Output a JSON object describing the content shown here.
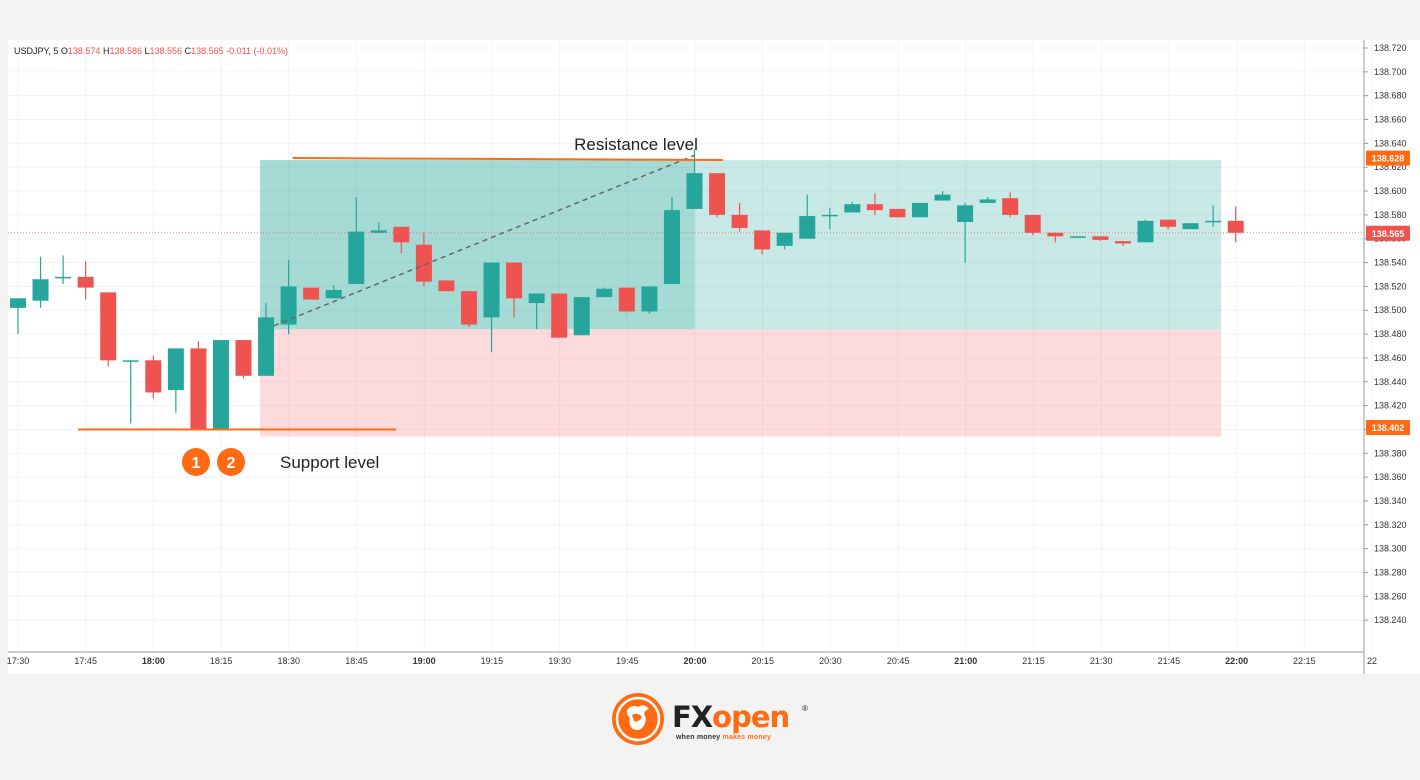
{
  "header": {
    "symbol": "USDJPY, 5",
    "o_label": "O",
    "o": "138.574",
    "h_label": "H",
    "h": "138.586",
    "l_label": "L",
    "l": "138.556",
    "c_label": "C",
    "c": "138.565",
    "change": "-0.011 (-0.01%)"
  },
  "annotations": {
    "resistance": "Resistance level",
    "support": "Support level",
    "marker1": "1",
    "marker2": "2"
  },
  "brand": {
    "name_a": "FX",
    "name_b": "open",
    "reg": "®",
    "tag_a": "when money ",
    "tag_b": "makes money"
  },
  "colors": {
    "up": "#26a69a",
    "down": "#ef5350",
    "accent": "#ff6a13",
    "profit_zone": "#26a69a",
    "loss_zone": "#f77c80"
  },
  "chart_data": {
    "type": "candlestick",
    "ylim": [
      138.22,
      138.72
    ],
    "x_tick_labels": [
      "17:30",
      "17:45",
      "18:00",
      "18:15",
      "18:30",
      "18:45",
      "19:00",
      "19:15",
      "19:30",
      "19:45",
      "20:00",
      "20:15",
      "20:30",
      "20:45",
      "21:00",
      "21:15",
      "21:30",
      "21:45",
      "22:00",
      "22:15",
      "22"
    ],
    "y_tick_values": [
      138.24,
      138.26,
      138.28,
      138.3,
      138.32,
      138.34,
      138.36,
      138.38,
      138.4,
      138.42,
      138.44,
      138.46,
      138.48,
      138.5,
      138.52,
      138.54,
      138.56,
      138.58,
      138.6,
      138.62,
      138.64,
      138.66,
      138.68,
      138.7,
      138.72
    ],
    "y_tick_labels": [
      "138.240",
      "138.260",
      "138.280",
      "138.300",
      "138.320",
      "138.340",
      "138.360",
      "138.380",
      "138.400",
      "138.420",
      "138.440",
      "138.460",
      "138.480",
      "138.500",
      "138.520",
      "138.540",
      "138.560",
      "138.580",
      "138.600",
      "138.620",
      "138.640",
      "138.660",
      "138.680",
      "138.700",
      "138.720"
    ],
    "price_labels": [
      {
        "value": 138.628,
        "text": "138.628"
      },
      {
        "value": 138.565,
        "text": "138.565"
      },
      {
        "value": 138.402,
        "text": "138.402"
      }
    ],
    "current_price": 138.565,
    "candles": [
      {
        "o": 138.502,
        "h": 138.51,
        "l": 138.48,
        "c": 138.51
      },
      {
        "o": 138.508,
        "h": 138.545,
        "l": 138.502,
        "c": 138.526
      },
      {
        "o": 138.528,
        "h": 138.546,
        "l": 138.522,
        "c": 138.528
      },
      {
        "o": 138.528,
        "h": 138.541,
        "l": 138.509,
        "c": 138.519
      },
      {
        "o": 138.515,
        "h": 138.515,
        "l": 138.453,
        "c": 138.458
      },
      {
        "o": 138.458,
        "h": 138.458,
        "l": 138.405,
        "c": 138.458
      },
      {
        "o": 138.458,
        "h": 138.462,
        "l": 138.426,
        "c": 138.431
      },
      {
        "o": 138.433,
        "h": 138.468,
        "l": 138.414,
        "c": 138.468
      },
      {
        "o": 138.468,
        "h": 138.474,
        "l": 138.4,
        "c": 138.4
      },
      {
        "o": 138.4,
        "h": 138.475,
        "l": 138.4,
        "c": 138.475
      },
      {
        "o": 138.475,
        "h": 138.475,
        "l": 138.443,
        "c": 138.445
      },
      {
        "o": 138.445,
        "h": 138.506,
        "l": 138.445,
        "c": 138.494
      },
      {
        "o": 138.488,
        "h": 138.542,
        "l": 138.48,
        "c": 138.52
      },
      {
        "o": 138.519,
        "h": 138.519,
        "l": 138.509,
        "c": 138.509
      },
      {
        "o": 138.51,
        "h": 138.521,
        "l": 138.51,
        "c": 138.517
      },
      {
        "o": 138.522,
        "h": 138.595,
        "l": 138.522,
        "c": 138.566
      },
      {
        "o": 138.565,
        "h": 138.574,
        "l": 138.565,
        "c": 138.567
      },
      {
        "o": 138.57,
        "h": 138.57,
        "l": 138.548,
        "c": 138.557
      },
      {
        "o": 138.555,
        "h": 138.565,
        "l": 138.52,
        "c": 138.524
      },
      {
        "o": 138.525,
        "h": 138.525,
        "l": 138.516,
        "c": 138.516
      },
      {
        "o": 138.516,
        "h": 138.516,
        "l": 138.486,
        "c": 138.488
      },
      {
        "o": 138.494,
        "h": 138.54,
        "l": 138.465,
        "c": 138.54
      },
      {
        "o": 138.54,
        "h": 138.54,
        "l": 138.494,
        "c": 138.51
      },
      {
        "o": 138.506,
        "h": 138.514,
        "l": 138.484,
        "c": 138.514
      },
      {
        "o": 138.514,
        "h": 138.514,
        "l": 138.477,
        "c": 138.477
      },
      {
        "o": 138.479,
        "h": 138.511,
        "l": 138.479,
        "c": 138.511
      },
      {
        "o": 138.511,
        "h": 138.519,
        "l": 138.511,
        "c": 138.518
      },
      {
        "o": 138.519,
        "h": 138.519,
        "l": 138.498,
        "c": 138.499
      },
      {
        "o": 138.499,
        "h": 138.52,
        "l": 138.497,
        "c": 138.52
      },
      {
        "o": 138.522,
        "h": 138.595,
        "l": 138.522,
        "c": 138.584
      },
      {
        "o": 138.585,
        "h": 138.635,
        "l": 138.585,
        "c": 138.615
      },
      {
        "o": 138.615,
        "h": 138.615,
        "l": 138.578,
        "c": 138.58
      },
      {
        "o": 138.58,
        "h": 138.59,
        "l": 138.566,
        "c": 138.569
      },
      {
        "o": 138.567,
        "h": 138.567,
        "l": 138.547,
        "c": 138.551
      },
      {
        "o": 138.554,
        "h": 138.565,
        "l": 138.551,
        "c": 138.565
      },
      {
        "o": 138.56,
        "h": 138.597,
        "l": 138.56,
        "c": 138.579
      },
      {
        "o": 138.58,
        "h": 138.586,
        "l": 138.568,
        "c": 138.58
      },
      {
        "o": 138.582,
        "h": 138.591,
        "l": 138.582,
        "c": 138.589
      },
      {
        "o": 138.589,
        "h": 138.598,
        "l": 138.58,
        "c": 138.584
      },
      {
        "o": 138.585,
        "h": 138.585,
        "l": 138.578,
        "c": 138.578
      },
      {
        "o": 138.578,
        "h": 138.59,
        "l": 138.578,
        "c": 138.59
      },
      {
        "o": 138.592,
        "h": 138.6,
        "l": 138.592,
        "c": 138.597
      },
      {
        "o": 138.574,
        "h": 138.59,
        "l": 138.54,
        "c": 138.588
      },
      {
        "o": 138.59,
        "h": 138.595,
        "l": 138.59,
        "c": 138.593
      },
      {
        "o": 138.594,
        "h": 138.599,
        "l": 138.578,
        "c": 138.58
      },
      {
        "o": 138.58,
        "h": 138.58,
        "l": 138.563,
        "c": 138.565
      },
      {
        "o": 138.565,
        "h": 138.565,
        "l": 138.557,
        "c": 138.562
      },
      {
        "o": 138.561,
        "h": 138.562,
        "l": 138.561,
        "c": 138.562
      },
      {
        "o": 138.562,
        "h": 138.562,
        "l": 138.558,
        "c": 138.559
      },
      {
        "o": 138.558,
        "h": 138.558,
        "l": 138.554,
        "c": 138.556
      },
      {
        "o": 138.557,
        "h": 138.576,
        "l": 138.557,
        "c": 138.575
      },
      {
        "o": 138.576,
        "h": 138.576,
        "l": 138.568,
        "c": 138.57
      },
      {
        "o": 138.568,
        "h": 138.573,
        "l": 138.568,
        "c": 138.573
      },
      {
        "o": 138.575,
        "h": 138.588,
        "l": 138.57,
        "c": 138.575
      },
      {
        "o": 138.575,
        "h": 138.587,
        "l": 138.557,
        "c": 138.565
      }
    ],
    "overlays": {
      "profit_zone": {
        "price_top": 138.626,
        "price_bottom": 138.484,
        "from_candle": 11,
        "to_candle": 53,
        "filled_to_candle": 30
      },
      "loss_zone": {
        "price_top": 138.484,
        "price_bottom": 138.394,
        "from_candle": 11,
        "to_candle": 53
      },
      "resistance_line": {
        "price": 138.626,
        "from_candle": 12,
        "to_candle": 31
      },
      "support_line": {
        "price": 138.4,
        "from_candle": 3,
        "to_candle": 16
      },
      "trend_line": {
        "from": [
          11,
          138.487
        ],
        "to": [
          30,
          138.63
        ]
      },
      "markers": [
        {
          "candle": 8,
          "text": "1"
        },
        {
          "candle": 9,
          "text": "2"
        }
      ]
    }
  }
}
